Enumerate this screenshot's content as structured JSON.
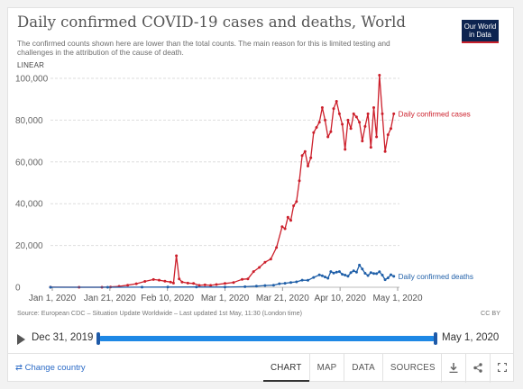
{
  "header": {
    "title": "Daily confirmed COVID-19 cases and deaths, World",
    "subtitle": "The confirmed counts shown here are lower than the total counts. The main reason for this is limited testing and challenges in the attribution of the cause of death.",
    "logo_line1": "Our World",
    "logo_line2": "in Data",
    "scale_toggle": "LINEAR"
  },
  "chart_data": {
    "type": "line",
    "ylim": [
      0,
      100000
    ],
    "y_ticks": [
      0,
      20000,
      40000,
      60000,
      80000,
      100000
    ],
    "y_tick_labels": [
      "0",
      "20,000",
      "40,000",
      "60,000",
      "80,000",
      "100,000"
    ],
    "x_tick_labels": [
      "Jan 1, 2020",
      "Jan 21, 2020",
      "Feb 10, 2020",
      "Mar 1, 2020",
      "Mar 21, 2020",
      "Apr 10, 2020",
      "May 1, 2020"
    ],
    "x_range": [
      "2019-12-31",
      "2020-05-01"
    ],
    "grid": true,
    "legend": "inline-right",
    "series": [
      {
        "name": "Daily confirmed cases",
        "color": "#cc1f2b",
        "points": [
          [
            "2019-12-31",
            27
          ],
          [
            "2020-01-10",
            0
          ],
          [
            "2020-01-18",
            20
          ],
          [
            "2020-01-21",
            150
          ],
          [
            "2020-01-24",
            450
          ],
          [
            "2020-01-27",
            1000
          ],
          [
            "2020-01-30",
            1700
          ],
          [
            "2020-02-02",
            2800
          ],
          [
            "2020-02-05",
            3700
          ],
          [
            "2020-02-07",
            3400
          ],
          [
            "2020-02-09",
            2900
          ],
          [
            "2020-02-11",
            2500
          ],
          [
            "2020-02-12",
            2000
          ],
          [
            "2020-02-13",
            15100
          ],
          [
            "2020-02-14",
            4000
          ],
          [
            "2020-02-15",
            2500
          ],
          [
            "2020-02-17",
            2000
          ],
          [
            "2020-02-19",
            1800
          ],
          [
            "2020-02-21",
            900
          ],
          [
            "2020-02-23",
            1100
          ],
          [
            "2020-02-25",
            900
          ],
          [
            "2020-02-27",
            1300
          ],
          [
            "2020-03-01",
            1800
          ],
          [
            "2020-03-04",
            2300
          ],
          [
            "2020-03-07",
            3800
          ],
          [
            "2020-03-09",
            4000
          ],
          [
            "2020-03-11",
            7500
          ],
          [
            "2020-03-13",
            9500
          ],
          [
            "2020-03-15",
            12000
          ],
          [
            "2020-03-17",
            13500
          ],
          [
            "2020-03-19",
            19000
          ],
          [
            "2020-03-21",
            29000
          ],
          [
            "2020-03-22",
            28000
          ],
          [
            "2020-03-23",
            33500
          ],
          [
            "2020-03-24",
            32000
          ],
          [
            "2020-03-25",
            39000
          ],
          [
            "2020-03-26",
            41000
          ],
          [
            "2020-03-27",
            51000
          ],
          [
            "2020-03-28",
            63000
          ],
          [
            "2020-03-29",
            65000
          ],
          [
            "2020-03-30",
            58000
          ],
          [
            "2020-03-31",
            62000
          ],
          [
            "2020-04-01",
            74000
          ],
          [
            "2020-04-02",
            76500
          ],
          [
            "2020-04-03",
            79000
          ],
          [
            "2020-04-04",
            86000
          ],
          [
            "2020-04-05",
            80000
          ],
          [
            "2020-04-06",
            72000
          ],
          [
            "2020-04-07",
            74500
          ],
          [
            "2020-04-08",
            85500
          ],
          [
            "2020-04-09",
            89000
          ],
          [
            "2020-04-10",
            83000
          ],
          [
            "2020-04-11",
            78000
          ],
          [
            "2020-04-12",
            66000
          ],
          [
            "2020-04-13",
            80000
          ],
          [
            "2020-04-14",
            76000
          ],
          [
            "2020-04-15",
            83000
          ],
          [
            "2020-04-16",
            81500
          ],
          [
            "2020-04-17",
            79000
          ],
          [
            "2020-04-18",
            70000
          ],
          [
            "2020-04-19",
            77000
          ],
          [
            "2020-04-20",
            83000
          ],
          [
            "2020-04-21",
            67000
          ],
          [
            "2020-04-22",
            86000
          ],
          [
            "2020-04-23",
            72000
          ],
          [
            "2020-04-24",
            101500
          ],
          [
            "2020-04-25",
            83000
          ],
          [
            "2020-04-26",
            65000
          ],
          [
            "2020-04-27",
            73000
          ],
          [
            "2020-04-28",
            76000
          ],
          [
            "2020-04-29",
            83000
          ]
        ]
      },
      {
        "name": "Daily confirmed deaths",
        "color": "#1f5fa8",
        "points": [
          [
            "2019-12-31",
            0
          ],
          [
            "2020-01-20",
            10
          ],
          [
            "2020-02-01",
            50
          ],
          [
            "2020-02-10",
            100
          ],
          [
            "2020-02-20",
            120
          ],
          [
            "2020-03-01",
            100
          ],
          [
            "2020-03-08",
            250
          ],
          [
            "2020-03-12",
            500
          ],
          [
            "2020-03-15",
            800
          ],
          [
            "2020-03-18",
            1000
          ],
          [
            "2020-03-20",
            1700
          ],
          [
            "2020-03-22",
            1900
          ],
          [
            "2020-03-24",
            2300
          ],
          [
            "2020-03-26",
            2600
          ],
          [
            "2020-03-28",
            3400
          ],
          [
            "2020-03-30",
            3300
          ],
          [
            "2020-04-01",
            4700
          ],
          [
            "2020-04-03",
            5900
          ],
          [
            "2020-04-04",
            5500
          ],
          [
            "2020-04-05",
            4900
          ],
          [
            "2020-04-06",
            4300
          ],
          [
            "2020-04-07",
            7500
          ],
          [
            "2020-04-08",
            6800
          ],
          [
            "2020-04-09",
            7200
          ],
          [
            "2020-04-10",
            7500
          ],
          [
            "2020-04-11",
            6200
          ],
          [
            "2020-04-12",
            5800
          ],
          [
            "2020-04-13",
            5300
          ],
          [
            "2020-04-14",
            7000
          ],
          [
            "2020-04-15",
            7900
          ],
          [
            "2020-04-16",
            7200
          ],
          [
            "2020-04-17",
            10600
          ],
          [
            "2020-04-18",
            8700
          ],
          [
            "2020-04-19",
            6700
          ],
          [
            "2020-04-20",
            5600
          ],
          [
            "2020-04-21",
            7000
          ],
          [
            "2020-04-22",
            6600
          ],
          [
            "2020-04-23",
            6500
          ],
          [
            "2020-04-24",
            7400
          ],
          [
            "2020-04-25",
            5800
          ],
          [
            "2020-04-26",
            3600
          ],
          [
            "2020-04-27",
            4500
          ],
          [
            "2020-04-28",
            6000
          ],
          [
            "2020-04-29",
            5200
          ]
        ]
      }
    ]
  },
  "source": {
    "text": "Source: European CDC – Situation Update Worldwide – Last updated 1st May, 11:30 (London time)",
    "license": "CC BY"
  },
  "timeline": {
    "start_label": "Dec 31, 2019",
    "end_label": "May 1, 2020",
    "start_value": 0,
    "end_value": 1
  },
  "footer": {
    "change_country": "⇄ Change country",
    "tabs": [
      "CHART",
      "MAP",
      "DATA",
      "SOURCES"
    ],
    "active_tab": "CHART"
  },
  "icons": {
    "download": "download-icon",
    "share": "share-icon",
    "fullscreen": "fullscreen-icon"
  }
}
